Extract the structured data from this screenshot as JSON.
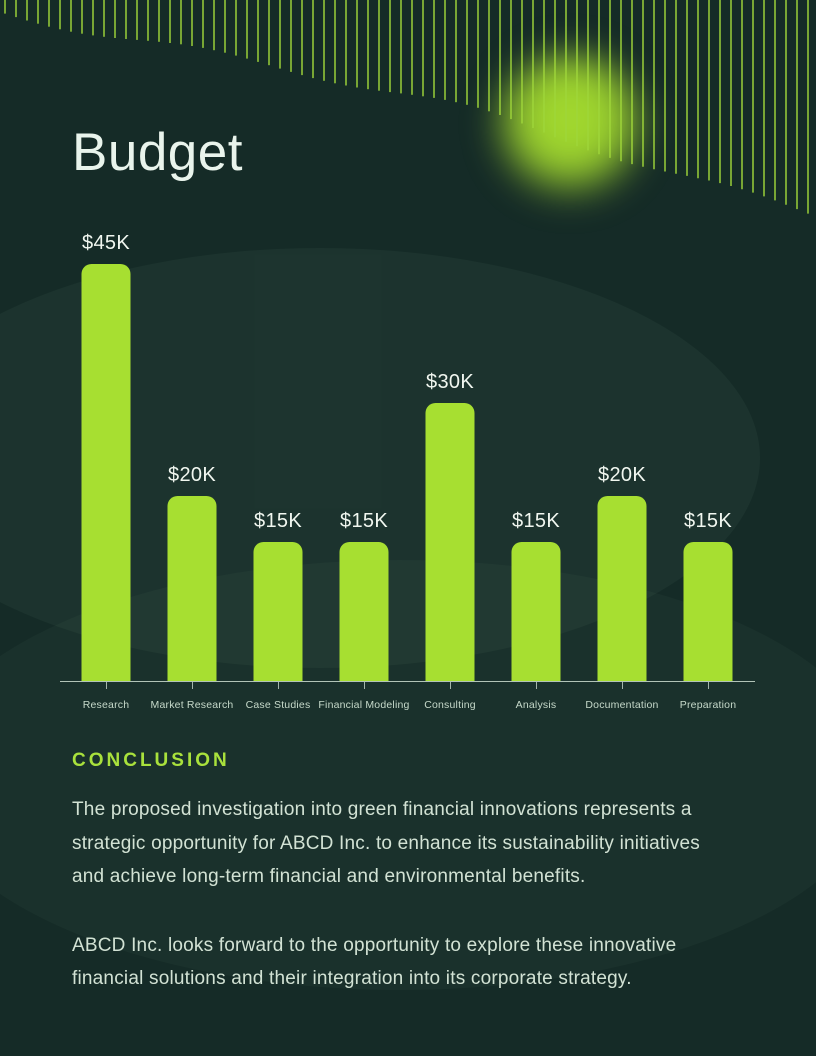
{
  "title": "Budget",
  "colors": {
    "background": "#152b27",
    "accent_lime": "#a7df31",
    "title_text": "#e9f4ec",
    "body_text": "#d2e2d4",
    "heading_text": "#a9e13c"
  },
  "chart_data": {
    "type": "bar",
    "title": "Budget",
    "categories": [
      "Research",
      "Market Research",
      "Case Studies",
      "Financial Modeling",
      "Consulting",
      "Analysis",
      "Documentation",
      "Preparation"
    ],
    "values": [
      45000,
      20000,
      15000,
      15000,
      30000,
      15000,
      20000,
      15000
    ],
    "value_labels": [
      "$45K",
      "$20K",
      "$15K",
      "$15K",
      "$30K",
      "$15K",
      "$20K",
      "$15K"
    ],
    "xlabel": "",
    "ylabel": "",
    "ylim": [
      0,
      45000
    ],
    "bar_color": "#a7df31",
    "grid": false,
    "legend": false
  },
  "conclusion": {
    "heading": "CONCLUSION",
    "paragraphs": [
      "The proposed investigation into green financial innovations represents a\nstrategic opportunity for ABCD Inc. to enhance its sustainability initiatives\nand achieve long-term financial and environmental benefits.",
      "ABCD Inc. looks forward to the opportunity to explore these innovative\nfinancial solutions and their integration into its corporate strategy."
    ]
  }
}
